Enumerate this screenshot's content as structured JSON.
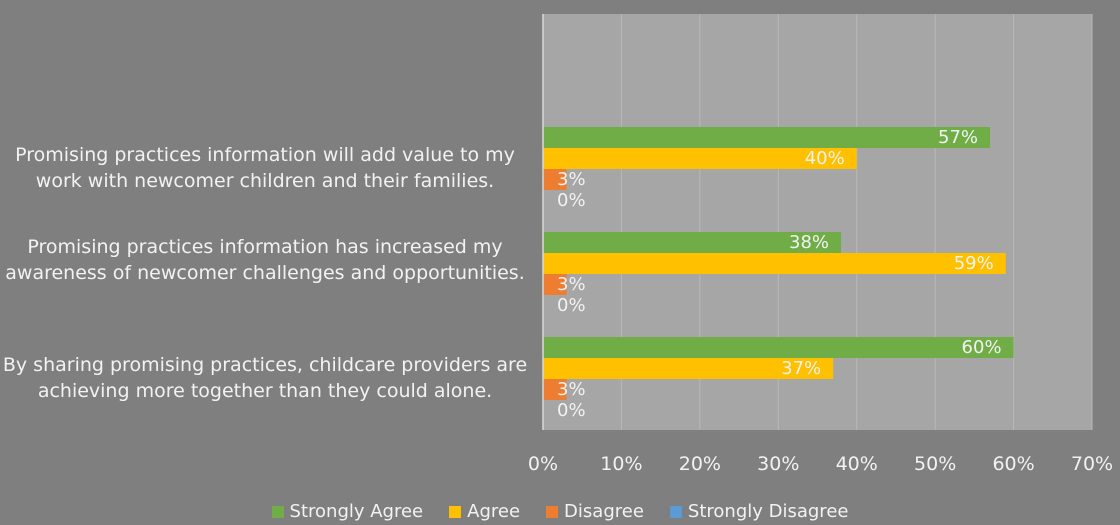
{
  "chart_data": {
    "type": "bar",
    "orientation": "horizontal",
    "categories": [
      "Promising practices information will add value to my work with newcomer children and their families.",
      "Promising practices information has increased my awareness of newcomer challenges and opportunities.",
      "By sharing promising practices, childcare providers are achieving more together than they could alone."
    ],
    "series": [
      {
        "name": "Strongly Agree",
        "color": "#70ad47",
        "values": [
          57,
          38,
          60
        ]
      },
      {
        "name": "Agree",
        "color": "#ffc000",
        "values": [
          40,
          59,
          37
        ]
      },
      {
        "name": "Disagree",
        "color": "#ed7d31",
        "values": [
          3,
          3,
          3
        ]
      },
      {
        "name": "Strongly Disagree",
        "color": "#5b9bd5",
        "values": [
          0,
          0,
          0
        ]
      }
    ],
    "xlim": [
      0,
      70
    ],
    "xticks": [
      "0%",
      "10%",
      "20%",
      "30%",
      "40%",
      "50%",
      "60%",
      "70%"
    ],
    "value_suffix": "%",
    "legend_position": "bottom",
    "grid": true,
    "plot_background": "#a6a6a6"
  }
}
